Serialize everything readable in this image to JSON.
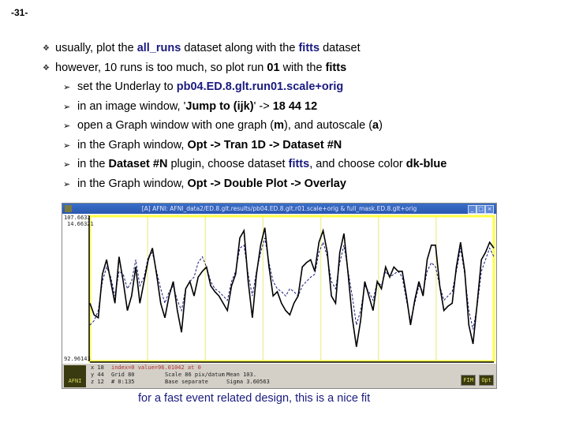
{
  "slide_number": "-31-",
  "bullets": [
    {
      "parts": [
        {
          "t": "usually, plot the "
        },
        {
          "t": "all_runs",
          "b": "nv"
        },
        {
          "t": " dataset along with the "
        },
        {
          "t": "fitts",
          "b": "nv"
        },
        {
          "t": " dataset"
        }
      ]
    },
    {
      "parts": [
        {
          "t": "however, 10 runs is too much, so plot run "
        },
        {
          "t": "01",
          "b": "k"
        },
        {
          "t": " with the "
        },
        {
          "t": "fitts",
          "b": "k"
        }
      ]
    }
  ],
  "sub_bullets": [
    {
      "parts": [
        {
          "t": "set the Underlay to "
        },
        {
          "t": "pb04.ED.8.glt.run01.scale+orig",
          "b": "nv"
        }
      ]
    },
    {
      "parts": [
        {
          "t": "in an image window, '"
        },
        {
          "t": "Jump to (ijk)",
          "b": "k"
        },
        {
          "t": "'  -> "
        },
        {
          "t": "18 44 12",
          "b": "k"
        }
      ]
    },
    {
      "parts": [
        {
          "t": "open a Graph window with one graph ("
        },
        {
          "t": "m",
          "b": "k"
        },
        {
          "t": "), and autoscale ("
        },
        {
          "t": "a",
          "b": "k"
        },
        {
          "t": ")"
        }
      ]
    },
    {
      "parts": [
        {
          "t": "in the Graph window, "
        },
        {
          "t": "Opt -> Tran 1D -> Dataset #N",
          "b": "k"
        }
      ]
    },
    {
      "parts": [
        {
          "t": "in the "
        },
        {
          "t": "Dataset #N",
          "b": "k"
        },
        {
          "t": " plugin, choose dataset "
        },
        {
          "t": "fitts",
          "b": "nv"
        },
        {
          "t": ", and choose color "
        },
        {
          "t": "dk-blue",
          "b": "k"
        }
      ]
    },
    {
      "parts": [
        {
          "t": "in the Graph window, "
        },
        {
          "t": "Opt -> Double Plot -> Overlay",
          "b": "k"
        }
      ]
    }
  ],
  "graph_window": {
    "title": "[A] AFNI: AFNI_data2/ED.8.glt.results/pb04.ED.8.glt.r01.scale+orig & full_mask.ED.8.glt+orig",
    "y_top_label": "107.6632",
    "y_top_label2": "14.66321",
    "y_bottom_label": "92.96143",
    "info": {
      "x": "x 18",
      "y": "y 44",
      "z": "z 12",
      "index_line": "index=0 value=96.01042 at 0",
      "grid": "Grid   80",
      "scale": "Scale  86 pix/datum",
      "num": "#   0:135",
      "base": "Base  separate",
      "mean": "Mean   103.",
      "sigma": "Sigma  3.60563"
    },
    "logo": "AFNI",
    "buttons": {
      "fim": "FIM",
      "opt": "Opt"
    },
    "colors": {
      "plot_frame": "#ffff40",
      "grid": "#f0f0a0",
      "data_line": "#000000",
      "fit_line": "#1a1a80"
    },
    "signal_series": {
      "data": [
        40,
        32,
        30,
        60,
        70,
        55,
        40,
        72,
        55,
        35,
        45,
        65,
        40,
        55,
        70,
        78,
        60,
        40,
        30,
        45,
        55,
        35,
        20,
        50,
        55,
        45,
        58,
        62,
        65,
        52,
        48,
        45,
        40,
        35,
        52,
        60,
        85,
        90,
        55,
        30,
        60,
        80,
        92,
        65,
        45,
        48,
        40,
        35,
        32,
        40,
        45,
        65,
        68,
        70,
        62,
        82,
        90,
        75,
        45,
        40,
        75,
        88,
        60,
        30,
        10,
        28,
        55,
        45,
        35,
        55,
        50,
        65,
        58,
        65,
        62,
        62,
        45,
        25,
        42,
        55,
        45,
        70,
        80,
        80,
        52,
        35,
        38,
        40,
        65,
        82,
        62,
        25,
        12,
        40,
        70,
        75,
        82,
        78
      ],
      "fit": [
        25,
        28,
        35,
        55,
        65,
        58,
        45,
        62,
        60,
        50,
        55,
        70,
        52,
        58,
        72,
        75,
        62,
        50,
        40,
        48,
        52,
        42,
        35,
        50,
        55,
        58,
        68,
        72,
        65,
        55,
        50,
        48,
        45,
        42,
        55,
        62,
        78,
        80,
        60,
        45,
        62,
        75,
        85,
        68,
        55,
        50,
        48,
        45,
        50,
        48,
        45,
        52,
        55,
        58,
        60,
        75,
        82,
        72,
        55,
        50,
        68,
        80,
        62,
        45,
        25,
        35,
        52,
        48,
        42,
        55,
        52,
        62,
        58,
        60,
        62,
        58,
        42,
        28,
        40,
        52,
        48,
        62,
        68,
        65,
        52,
        42,
        45,
        48,
        62,
        78,
        60,
        35,
        22,
        38,
        62,
        70,
        78,
        72
      ]
    }
  },
  "caption": "for a fast event related design, this is a nice fit"
}
